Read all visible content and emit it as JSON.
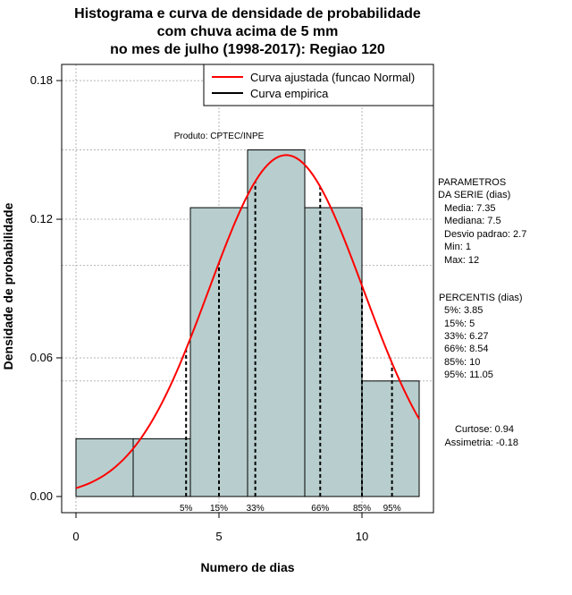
{
  "chart_data": {
    "type": "bar",
    "title_lines": [
      "Histograma e curva de densidade de probabilidade",
      "com chuva acima de 5 mm",
      "no mes de julho (1998-2017): Regiao 120"
    ],
    "xlabel": "Numero de dias",
    "ylabel": "Densidade de probabilidade",
    "xlim": [
      -0.5,
      12.5
    ],
    "ylim": [
      -0.007,
      0.187
    ],
    "x_ticks": [
      0,
      5,
      10
    ],
    "y_ticks": [
      0.0,
      0.06,
      0.12,
      0.18
    ],
    "y_tick_labels": [
      "0.00",
      "0.06",
      "0.12",
      "0.18"
    ],
    "bin_edges": [
      0,
      2,
      4,
      6,
      8,
      10,
      12
    ],
    "bar_values": [
      0.025,
      0.025,
      0.125,
      0.15,
      0.125,
      0.05
    ],
    "bar_color": "#b8cece",
    "grid_y": [
      0.06,
      0.12,
      0.18
    ],
    "grid_y_major": [
      0.05,
      0.1,
      0.15
    ],
    "grid_x": [
      0,
      5,
      10
    ],
    "fitted_curve": {
      "name": "Curva ajustada (funcao Normal)",
      "color": "#ff0000",
      "mean": 7.35,
      "sd": 2.7,
      "x_range": [
        0,
        12
      ]
    },
    "empirical_curve": {
      "name": "Curva empirica",
      "color": "#000000"
    },
    "percentile_lines": [
      {
        "label": "5%",
        "x": 3.85
      },
      {
        "label": "15%",
        "x": 5
      },
      {
        "label": "33%",
        "x": 6.27
      },
      {
        "label": "66%",
        "x": 8.54
      },
      {
        "label": "85%",
        "x": 10
      },
      {
        "label": "95%",
        "x": 11.05
      }
    ],
    "annotation": "Produto: CPTEC/INPE",
    "legend_position": "top-right"
  },
  "side_panel": {
    "params_header": [
      "PARAMETROS",
      "DA SERIE (dias)"
    ],
    "params": [
      "Media: 7.35",
      "Mediana: 7.5",
      "Desvio padrao: 2.7",
      "Min: 1",
      "Max: 12"
    ],
    "percentis_header": "PERCENTIS (dias)",
    "percentis": [
      "5%: 3.85",
      "15%: 5",
      "33%: 6.27",
      "66%: 8.54",
      "85%: 10",
      "95%: 11.05"
    ],
    "curtose": "Curtose: 0.94",
    "assimetria": "Assimetria: -0.18"
  }
}
